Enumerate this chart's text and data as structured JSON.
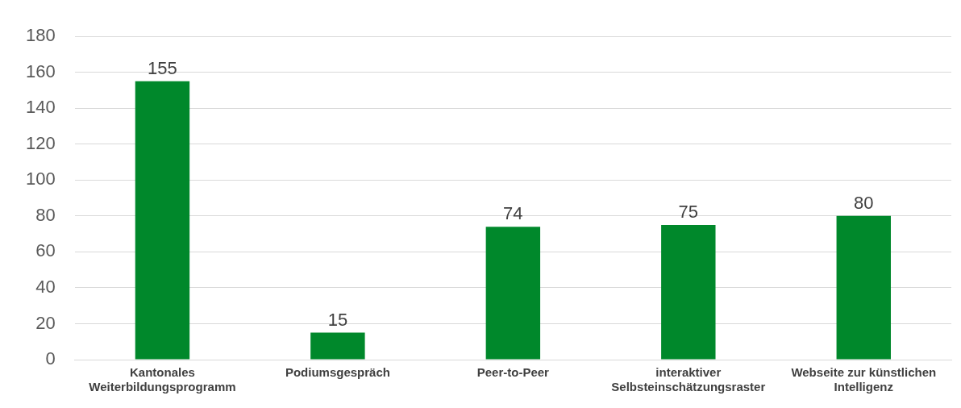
{
  "chart_data": {
    "type": "bar",
    "categories": [
      "Kantonales Weiterbildungsprogramm",
      "Podiumsgespräch",
      "Peer-to-Peer",
      "interaktiver Selbsteinschätzungsraster",
      "Webseite zur künstlichen Intelligenz"
    ],
    "values": [
      155,
      15,
      74,
      75,
      80
    ],
    "color": "#00882b",
    "ylim": [
      0,
      180
    ],
    "yticks": [
      0,
      20,
      40,
      60,
      80,
      100,
      120,
      140,
      160,
      180
    ],
    "grid": "y",
    "data_labels": true,
    "legend": false
  }
}
